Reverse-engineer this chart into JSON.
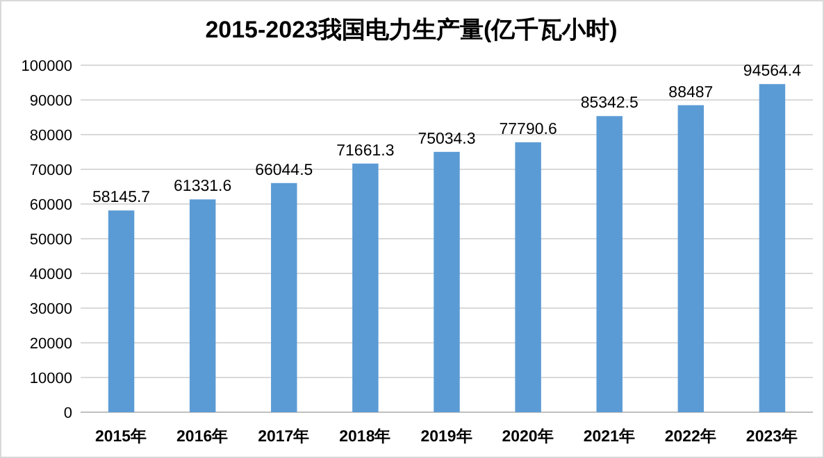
{
  "chart_data": {
    "type": "bar",
    "title": "2015-2023我国电力生产量(亿千瓦小时)",
    "categories": [
      "2015年",
      "2016年",
      "2017年",
      "2018年",
      "2019年",
      "2020年",
      "2021年",
      "2022年",
      "2023年"
    ],
    "values": [
      58145.7,
      61331.6,
      66044.5,
      71661.3,
      75034.3,
      77790.6,
      85342.5,
      88487,
      94564.4
    ],
    "color": "#5b9bd5",
    "ylim": [
      0,
      100000
    ],
    "yticks": [
      0,
      10000,
      20000,
      30000,
      40000,
      50000,
      60000,
      70000,
      80000,
      90000,
      100000
    ],
    "grid": "y",
    "data_labels": true
  }
}
